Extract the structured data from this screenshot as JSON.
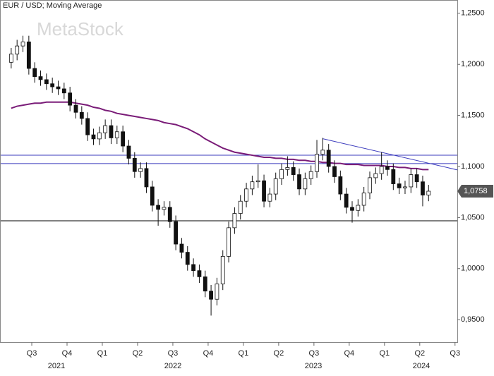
{
  "chart_data": {
    "type": "candlestick",
    "title": "EUR / USD; Moving Average",
    "watermark": "MetaStock",
    "categories": [
      null,
      null,
      null,
      null,
      "Q3",
      null,
      null,
      null,
      null,
      null,
      "Q4",
      null,
      null,
      null,
      null,
      null,
      "Q1",
      null,
      null,
      null,
      null,
      null,
      "Q2",
      null,
      null,
      null,
      null,
      null,
      "Q3",
      null,
      null,
      null,
      null,
      null,
      "Q4",
      null,
      null,
      null,
      null,
      null,
      "Q1",
      null,
      null,
      null,
      null,
      null,
      "Q2",
      null,
      null,
      null,
      null,
      null,
      "Q3",
      null,
      null,
      null,
      null,
      null,
      "Q4",
      null,
      null,
      null,
      null,
      null,
      "Q1",
      null,
      null,
      null,
      null,
      null,
      "Q2",
      null,
      null,
      null,
      null,
      null,
      "Q3"
    ],
    "years": [
      "2021",
      "2022",
      "2023",
      "2024"
    ],
    "open": [
      1.202,
      1.21,
      1.218,
      1.222,
      1.196,
      1.188,
      1.185,
      1.181,
      1.178,
      1.176,
      1.172,
      1.16,
      1.153,
      1.147,
      1.131,
      1.127,
      1.133,
      1.14,
      1.128,
      1.134,
      1.12,
      1.108,
      1.095,
      1.098,
      1.08,
      1.062,
      1.058,
      1.06,
      1.046,
      1.024,
      1.016,
      1.004,
      0.998,
      0.992,
      0.978,
      0.97,
      0.985,
      1.012,
      1.04,
      1.054,
      1.066,
      1.078,
      1.085,
      1.086,
      1.066,
      1.073,
      1.088,
      1.097,
      1.099,
      1.092,
      1.078,
      1.088,
      1.095,
      1.112,
      1.116,
      1.1,
      1.09,
      1.073,
      1.06,
      1.057,
      1.062,
      1.074,
      1.089,
      1.093,
      1.1,
      1.097,
      1.083,
      1.079,
      1.08,
      1.092,
      1.085,
      1.072,
      null,
      null,
      null,
      null,
      null
    ],
    "high": [
      1.216,
      1.224,
      1.228,
      1.228,
      1.202,
      1.194,
      1.191,
      1.187,
      1.184,
      1.182,
      1.178,
      1.166,
      1.159,
      1.153,
      1.137,
      1.139,
      1.146,
      1.146,
      1.14,
      1.14,
      1.126,
      1.114,
      1.104,
      1.104,
      1.086,
      1.068,
      1.066,
      1.066,
      1.052,
      1.03,
      1.022,
      1.01,
      1.004,
      0.998,
      0.984,
      0.991,
      1.018,
      1.046,
      1.06,
      1.072,
      1.084,
      1.091,
      1.102,
      1.092,
      1.079,
      1.094,
      1.103,
      1.11,
      1.105,
      1.098,
      1.094,
      1.101,
      1.126,
      1.128,
      1.122,
      1.106,
      1.096,
      1.079,
      1.066,
      1.068,
      1.08,
      1.095,
      1.099,
      1.114,
      1.106,
      1.103,
      1.089,
      1.086,
      1.098,
      1.098,
      1.091,
      1.082,
      null,
      null,
      null,
      null,
      null
    ],
    "low": [
      1.196,
      1.204,
      1.212,
      1.19,
      1.182,
      1.179,
      1.175,
      1.172,
      1.17,
      1.166,
      1.154,
      1.147,
      1.141,
      1.125,
      1.121,
      1.121,
      1.127,
      1.122,
      1.122,
      1.114,
      1.102,
      1.089,
      1.089,
      1.074,
      1.056,
      1.042,
      1.052,
      1.04,
      1.018,
      1.01,
      0.998,
      0.992,
      0.986,
      0.972,
      0.954,
      0.964,
      0.979,
      1.006,
      1.034,
      1.048,
      1.06,
      1.072,
      1.079,
      1.06,
      1.06,
      1.067,
      1.082,
      1.091,
      1.086,
      1.072,
      1.072,
      1.082,
      1.089,
      1.106,
      1.094,
      1.084,
      1.067,
      1.054,
      1.045,
      1.051,
      1.056,
      1.068,
      1.083,
      1.087,
      1.091,
      1.077,
      1.073,
      1.073,
      1.074,
      1.079,
      1.061,
      1.066,
      null,
      null,
      null,
      null,
      null
    ],
    "close": [
      1.21,
      1.218,
      1.222,
      1.196,
      1.188,
      1.185,
      1.181,
      1.178,
      1.176,
      1.172,
      1.16,
      1.153,
      1.147,
      1.131,
      1.127,
      1.133,
      1.14,
      1.128,
      1.134,
      1.12,
      1.108,
      1.095,
      1.098,
      1.08,
      1.062,
      1.058,
      1.06,
      1.046,
      1.024,
      1.016,
      1.004,
      0.998,
      0.992,
      0.978,
      0.97,
      0.985,
      1.012,
      1.04,
      1.054,
      1.066,
      1.078,
      1.085,
      1.086,
      1.066,
      1.073,
      1.088,
      1.097,
      1.099,
      1.092,
      1.078,
      1.088,
      1.095,
      1.112,
      1.116,
      1.1,
      1.09,
      1.073,
      1.06,
      1.057,
      1.062,
      1.074,
      1.089,
      1.093,
      1.1,
      1.097,
      1.083,
      1.079,
      1.08,
      1.092,
      1.085,
      1.072,
      1.0758,
      null,
      null,
      null,
      null,
      null
    ],
    "last_label": "1,0758",
    "moving_average": {
      "color": "#7a1c78",
      "values": [
        1.157,
        1.159,
        1.16,
        1.161,
        1.162,
        1.162,
        1.163,
        1.163,
        1.163,
        1.163,
        1.163,
        1.162,
        1.161,
        1.16,
        1.158,
        1.157,
        1.155,
        1.154,
        1.152,
        1.151,
        1.15,
        1.149,
        1.148,
        1.147,
        1.146,
        1.145,
        1.143,
        1.142,
        1.141,
        1.139,
        1.137,
        1.134,
        1.131,
        1.127,
        1.124,
        1.121,
        1.118,
        1.116,
        1.114,
        1.113,
        1.112,
        1.111,
        1.11,
        1.109,
        1.109,
        1.108,
        1.108,
        1.107,
        1.107,
        1.106,
        1.106,
        1.105,
        1.105,
        1.104,
        1.104,
        1.103,
        1.103,
        1.102,
        1.102,
        1.102,
        1.101,
        1.101,
        1.101,
        1.101,
        1.1,
        1.1,
        1.099,
        1.099,
        1.098,
        1.098,
        1.097,
        1.097,
        null,
        null,
        null,
        null,
        null
      ]
    },
    "hlines": [
      {
        "value": 1.111,
        "color": "#3b3bbd"
      },
      {
        "value": 1.1028,
        "color": "#3b3bbd"
      },
      {
        "value": 1.0468,
        "color": "#000000"
      }
    ],
    "trendline": {
      "values": [
        1.1272,
        1.0965
      ],
      "color": "#3b3bbd"
    },
    "ylim": [
      0.928,
      1.263
    ],
    "yticks": [
      {
        "value": 0.95,
        "label": "0,9500"
      },
      {
        "value": 1.0,
        "label": "1,0000"
      },
      {
        "value": 1.05,
        "label": "1,0500"
      },
      {
        "value": 1.1,
        "label": "1,1000"
      },
      {
        "value": 1.15,
        "label": "1,1500"
      },
      {
        "value": 1.2,
        "label": "1,2000"
      },
      {
        "value": 1.25,
        "label": "1,2500"
      }
    ]
  }
}
